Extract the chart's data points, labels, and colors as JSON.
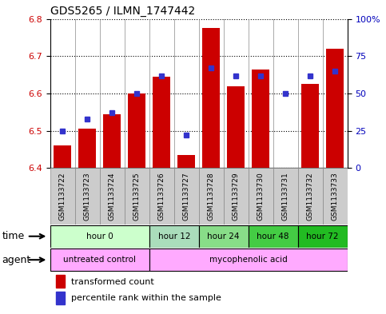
{
  "title": "GDS5265 / ILMN_1747442",
  "samples": [
    "GSM1133722",
    "GSM1133723",
    "GSM1133724",
    "GSM1133725",
    "GSM1133726",
    "GSM1133727",
    "GSM1133728",
    "GSM1133729",
    "GSM1133730",
    "GSM1133731",
    "GSM1133732",
    "GSM1133733"
  ],
  "transformed_count": [
    6.46,
    6.505,
    6.545,
    6.6,
    6.645,
    6.435,
    6.775,
    6.62,
    6.665,
    6.4,
    6.625,
    6.72
  ],
  "percentile_rank": [
    25,
    33,
    37,
    50,
    62,
    22,
    67,
    62,
    62,
    50,
    62,
    65
  ],
  "ylim": [
    6.4,
    6.8
  ],
  "yticks_left": [
    6.4,
    6.5,
    6.6,
    6.7,
    6.8
  ],
  "yticks_right": [
    0,
    25,
    50,
    75,
    100
  ],
  "bar_color": "#cc0000",
  "dot_color": "#3333cc",
  "bg_color": "#ffffff",
  "left_axis_color": "#cc0000",
  "right_axis_color": "#0000bb",
  "base_value": 6.4,
  "time_groups": [
    {
      "label": "hour 0",
      "start": 0,
      "end": 4,
      "color": "#ccffcc"
    },
    {
      "label": "hour 12",
      "start": 4,
      "end": 6,
      "color": "#aaeebb"
    },
    {
      "label": "hour 24",
      "start": 6,
      "end": 8,
      "color": "#88dd88"
    },
    {
      "label": "hour 48",
      "start": 8,
      "end": 10,
      "color": "#44cc44"
    },
    {
      "label": "hour 72",
      "start": 10,
      "end": 12,
      "color": "#22bb22"
    }
  ],
  "agent_groups": [
    {
      "label": "untreated control",
      "start": 0,
      "end": 4,
      "color": "#ffaaff"
    },
    {
      "label": "mycophenolic acid",
      "start": 4,
      "end": 12,
      "color": "#ffaaff"
    }
  ],
  "legend_bar_label": "transformed count",
  "legend_dot_label": "percentile rank within the sample",
  "time_label": "time",
  "agent_label": "agent"
}
